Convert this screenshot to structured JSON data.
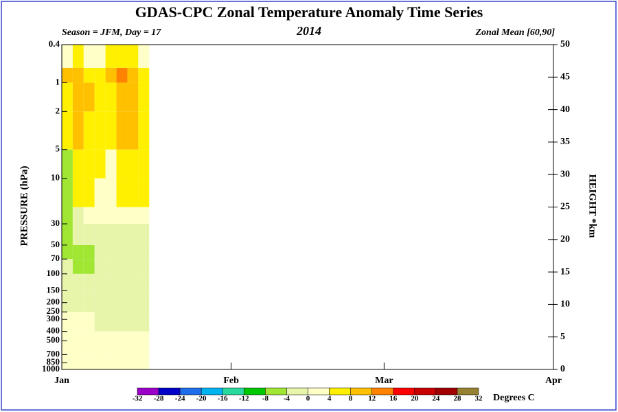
{
  "chart_data": {
    "type": "heatmap",
    "title": "GDAS-CPC Zonal Temperature Anomaly Time Series",
    "subtitle_left": "Season = JFM, Day =  17",
    "subtitle_center": "2014",
    "subtitle_right": "Zonal Mean [60,90]",
    "ylabel": "PRESSURE (hPa)",
    "y2label": "HEIGHT *km",
    "colorbar_label": "Degrees C",
    "xlim": [
      1,
      91
    ],
    "xticks": [
      {
        "value": 1,
        "label": "Jan"
      },
      {
        "value": 32,
        "label": "Feb"
      },
      {
        "value": 60,
        "label": "Mar"
      },
      {
        "value": 91,
        "label": "Apr"
      }
    ],
    "ylim": [
      1000,
      0.4
    ],
    "ylog": true,
    "yticks": [
      0.4,
      1,
      2,
      5,
      10,
      30,
      50,
      70,
      100,
      150,
      200,
      250,
      300,
      400,
      500,
      700,
      850,
      1000
    ],
    "y2lim": [
      0,
      50
    ],
    "y2ticks": [
      0,
      5,
      10,
      15,
      20,
      25,
      30,
      35,
      40,
      45,
      50
    ],
    "x": [
      1,
      3,
      5,
      7,
      9,
      11,
      13,
      15,
      17
    ],
    "y": [
      1000,
      700,
      400,
      250,
      150,
      100,
      70,
      50,
      30,
      20,
      10,
      5,
      2,
      1,
      0.7,
      0.4
    ],
    "values": [
      [
        2,
        2,
        2,
        2,
        2,
        2,
        2,
        2
      ],
      [
        2,
        2,
        2,
        2,
        2,
        2,
        2,
        2
      ],
      [
        2,
        2,
        2,
        -2,
        -2,
        -2,
        -2,
        -2
      ],
      [
        -2,
        -2,
        -2,
        -2,
        -2,
        -2,
        -2,
        -2
      ],
      [
        -2,
        -2,
        -2,
        -2,
        -2,
        -2,
        -2,
        -2
      ],
      [
        -2,
        -6,
        -6,
        -2,
        -2,
        -2,
        -2,
        -2
      ],
      [
        -6,
        -6,
        -6,
        -2,
        -2,
        -2,
        -2,
        -2
      ],
      [
        -6,
        -2,
        -2,
        -2,
        -2,
        -2,
        -2,
        -2
      ],
      [
        -6,
        -2,
        2,
        2,
        2,
        2,
        2,
        2
      ],
      [
        -6,
        6,
        6,
        2,
        2,
        6,
        6,
        6
      ],
      [
        -6,
        6,
        6,
        6,
        2,
        6,
        6,
        6
      ],
      [
        6,
        10,
        6,
        6,
        6,
        10,
        10,
        6
      ],
      [
        6,
        10,
        10,
        6,
        6,
        10,
        10,
        6
      ],
      [
        10,
        10,
        6,
        6,
        10,
        14,
        10,
        6
      ],
      [
        2,
        6,
        2,
        2,
        6,
        6,
        6,
        2
      ]
    ],
    "levels": [
      -32,
      -28,
      -24,
      -20,
      -16,
      -12,
      -8,
      -4,
      0,
      4,
      8,
      12,
      16,
      20,
      24,
      28,
      32
    ],
    "colors": [
      "#9b00c8",
      "#0000c8",
      "#1e6eeb",
      "#00b4f0",
      "#2ad8a0",
      "#00c800",
      "#a0e632",
      "#e6f5aa",
      "#ffffc8",
      "#fff000",
      "#ffc000",
      "#ff8200",
      "#ff0000",
      "#c80000",
      "#a00000",
      "#968232"
    ]
  }
}
